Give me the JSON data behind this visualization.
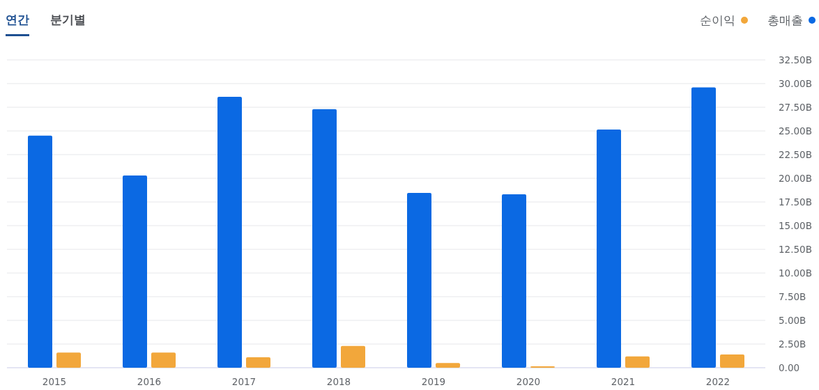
{
  "chart_data": {
    "type": "bar",
    "annotations": [
      "연간",
      "분기별"
    ],
    "categories": [
      "2015",
      "2016",
      "2017",
      "2018",
      "2019",
      "2020",
      "2021",
      "2022"
    ],
    "series": [
      {
        "name": "순이익",
        "color": "#f2a73b",
        "values": [
          1.6,
          1.6,
          1.1,
          2.3,
          0.5,
          0.15,
          1.2,
          1.4
        ]
      },
      {
        "name": "총매출",
        "color": "#0b69e3",
        "values": [
          24.5,
          20.3,
          28.6,
          27.3,
          18.45,
          18.3,
          25.15,
          29.6
        ]
      }
    ],
    "ylim": [
      0,
      32.5
    ],
    "yticks": [
      {
        "value": 0,
        "label": "0.00"
      },
      {
        "value": 2.5,
        "label": "2.50B"
      },
      {
        "value": 5,
        "label": "5.00B"
      },
      {
        "value": 7.5,
        "label": "7.50B"
      },
      {
        "value": 10,
        "label": "10.00B"
      },
      {
        "value": 12.5,
        "label": "12.50B"
      },
      {
        "value": 15,
        "label": "15.00B"
      },
      {
        "value": 17.5,
        "label": "17.50B"
      },
      {
        "value": 20,
        "label": "20.00B"
      },
      {
        "value": 22.5,
        "label": "22.50B"
      },
      {
        "value": 25,
        "label": "25.00B"
      },
      {
        "value": 27.5,
        "label": "27.50B"
      },
      {
        "value": 30,
        "label": "30.00B"
      },
      {
        "value": 32.5,
        "label": "32.50B"
      }
    ],
    "grid": "y",
    "legend": "top right"
  }
}
